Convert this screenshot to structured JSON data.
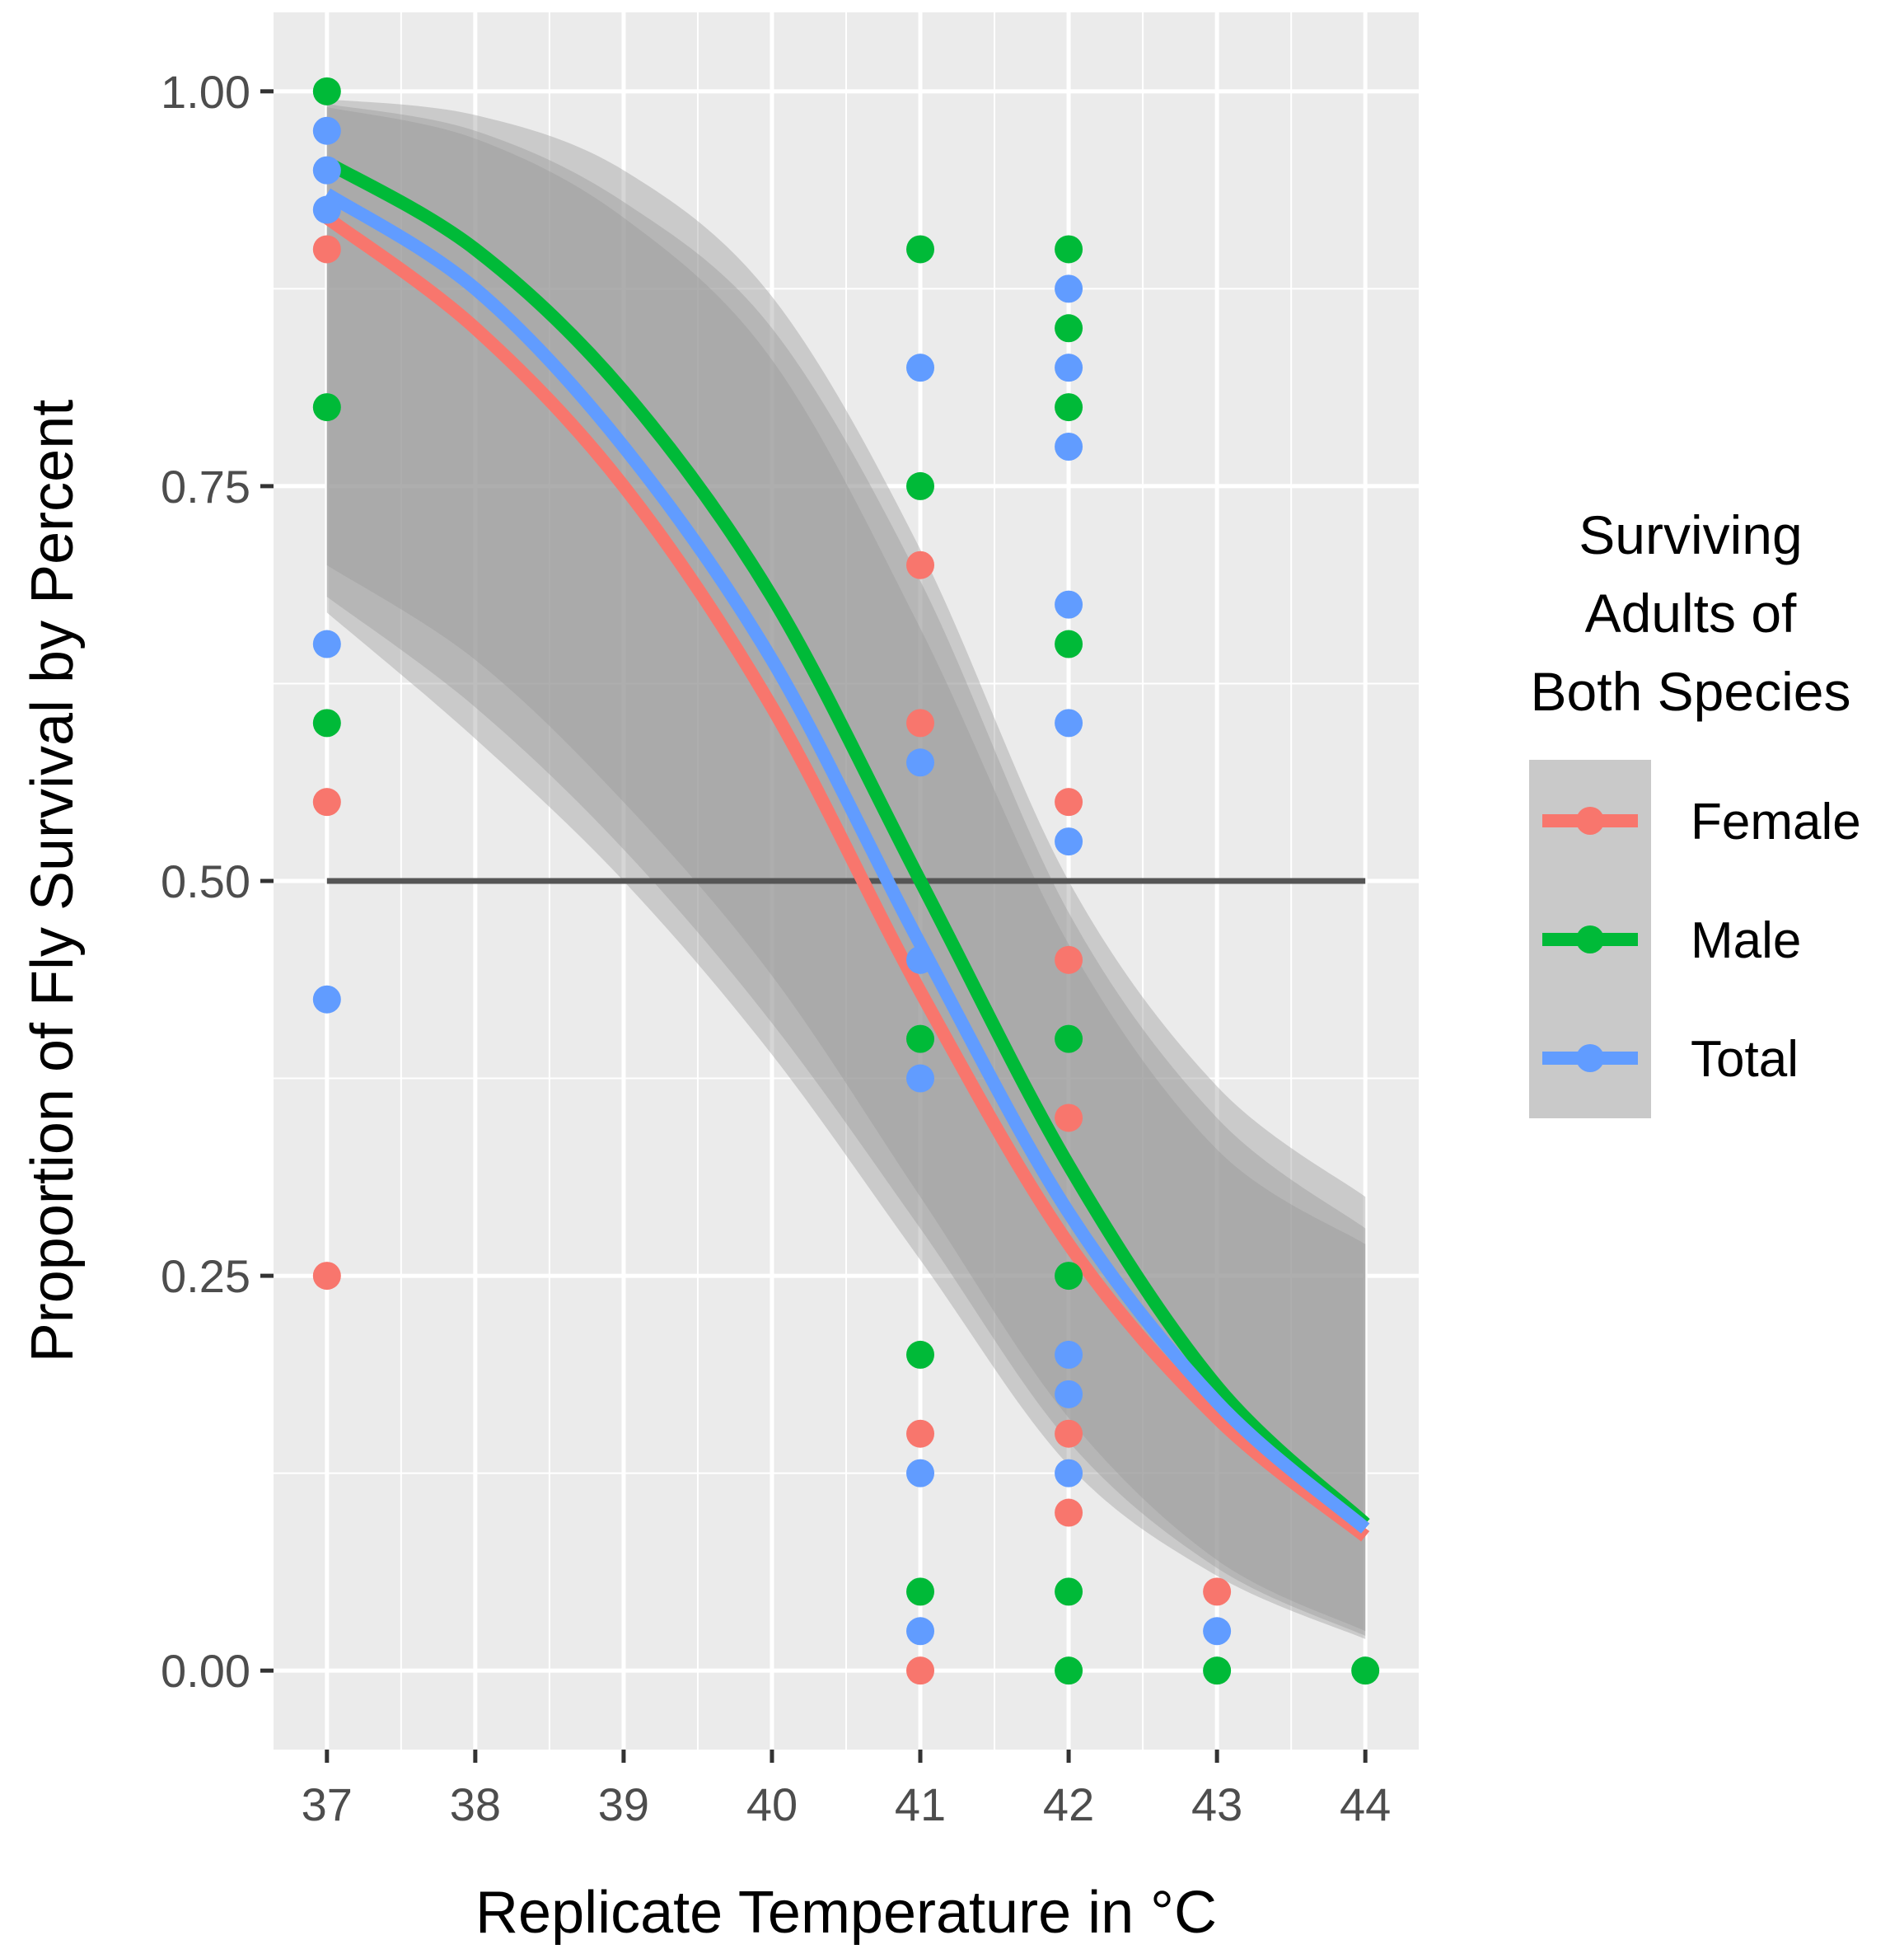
{
  "chart_data": {
    "type": "scatter",
    "title": "",
    "xlabel": "Replicate Temperature in °C",
    "ylabel": "Proportion of Fly Survival by Percent",
    "xlim": [
      36.64,
      44.36
    ],
    "ylim": [
      -0.05,
      1.05
    ],
    "x_ticks": [
      37,
      38,
      39,
      40,
      41,
      42,
      43,
      44
    ],
    "y_ticks": [
      0.0,
      0.25,
      0.5,
      0.75,
      1.0
    ],
    "y_tick_labels": [
      "0.00",
      "0.25",
      "0.50",
      "0.75",
      "1.00"
    ],
    "reference_line": {
      "y": 0.5,
      "color": "#555555"
    },
    "legend": {
      "title_lines": [
        "Surviving",
        "Adults of",
        "Both Species"
      ],
      "position": "right"
    },
    "series": [
      {
        "name": "Female",
        "color": "#F8766D",
        "points": [
          [
            37,
            0.9
          ],
          [
            37,
            0.55
          ],
          [
            37,
            0.25
          ],
          [
            41,
            0.7
          ],
          [
            41,
            0.6
          ],
          [
            41,
            0.15
          ],
          [
            41,
            0.0
          ],
          [
            42,
            0.55
          ],
          [
            42,
            0.45
          ],
          [
            42,
            0.35
          ],
          [
            42,
            0.15
          ],
          [
            42,
            0.1
          ],
          [
            43,
            0.05
          ]
        ],
        "fit": [
          [
            37,
            0.92
          ],
          [
            38,
            0.85
          ],
          [
            39,
            0.75
          ],
          [
            40,
            0.61
          ],
          [
            41,
            0.43
          ],
          [
            42,
            0.27
          ],
          [
            43,
            0.16
          ],
          [
            44,
            0.085
          ]
        ],
        "ci_lower": [
          [
            37,
            0.67
          ],
          [
            38,
            0.59
          ],
          [
            39,
            0.5
          ],
          [
            40,
            0.39
          ],
          [
            41,
            0.26
          ],
          [
            42,
            0.13
          ],
          [
            43,
            0.06
          ],
          [
            44,
            0.02
          ]
        ],
        "ci_upper": [
          [
            37,
            0.99
          ],
          [
            38,
            0.97
          ],
          [
            39,
            0.92
          ],
          [
            40,
            0.83
          ],
          [
            41,
            0.66
          ],
          [
            42,
            0.46
          ],
          [
            43,
            0.33
          ],
          [
            44,
            0.27
          ]
        ]
      },
      {
        "name": "Male",
        "color": "#00BA38",
        "points": [
          [
            37,
            1.0
          ],
          [
            37,
            0.8
          ],
          [
            37,
            0.6
          ],
          [
            41,
            0.9
          ],
          [
            41,
            0.75
          ],
          [
            41,
            0.4
          ],
          [
            41,
            0.2
          ],
          [
            41,
            0.05
          ],
          [
            42,
            0.9
          ],
          [
            42,
            0.85
          ],
          [
            42,
            0.8
          ],
          [
            42,
            0.65
          ],
          [
            42,
            0.4
          ],
          [
            42,
            0.25
          ],
          [
            42,
            0.05
          ],
          [
            42,
            0.0
          ],
          [
            43,
            0.0
          ],
          [
            44,
            0.0
          ]
        ],
        "fit": [
          [
            37,
            0.955
          ],
          [
            38,
            0.9
          ],
          [
            39,
            0.81
          ],
          [
            40,
            0.68
          ],
          [
            41,
            0.5
          ],
          [
            42,
            0.32
          ],
          [
            43,
            0.18
          ],
          [
            44,
            0.093
          ]
        ],
        "ci_lower": [
          [
            37,
            0.7
          ],
          [
            38,
            0.64
          ],
          [
            39,
            0.55
          ],
          [
            40,
            0.44
          ],
          [
            41,
            0.3
          ],
          [
            42,
            0.16
          ],
          [
            43,
            0.07
          ],
          [
            44,
            0.025
          ]
        ],
        "ci_upper": [
          [
            37,
            0.995
          ],
          [
            38,
            0.985
          ],
          [
            39,
            0.95
          ],
          [
            40,
            0.87
          ],
          [
            41,
            0.71
          ],
          [
            42,
            0.5
          ],
          [
            43,
            0.37
          ],
          [
            44,
            0.3
          ]
        ]
      },
      {
        "name": "Total",
        "color": "#619CFF",
        "points": [
          [
            37,
            0.975
          ],
          [
            37,
            0.95
          ],
          [
            37,
            0.925
          ],
          [
            37,
            0.65
          ],
          [
            37,
            0.425
          ],
          [
            41,
            0.825
          ],
          [
            41,
            0.575
          ],
          [
            41,
            0.45
          ],
          [
            41,
            0.375
          ],
          [
            41,
            0.125
          ],
          [
            41,
            0.025
          ],
          [
            42,
            0.875
          ],
          [
            42,
            0.825
          ],
          [
            42,
            0.775
          ],
          [
            42,
            0.675
          ],
          [
            42,
            0.6
          ],
          [
            42,
            0.525
          ],
          [
            42,
            0.2
          ],
          [
            42,
            0.175
          ],
          [
            42,
            0.125
          ],
          [
            43,
            0.025
          ]
        ],
        "fit": [
          [
            37,
            0.935
          ],
          [
            38,
            0.875
          ],
          [
            39,
            0.775
          ],
          [
            40,
            0.64
          ],
          [
            41,
            0.46
          ],
          [
            42,
            0.29
          ],
          [
            43,
            0.17
          ],
          [
            44,
            0.09
          ]
        ],
        "ci_lower": [
          [
            37,
            0.68
          ],
          [
            38,
            0.61
          ],
          [
            39,
            0.52
          ],
          [
            40,
            0.41
          ],
          [
            41,
            0.28
          ],
          [
            42,
            0.145
          ],
          [
            43,
            0.065
          ],
          [
            44,
            0.022
          ]
        ],
        "ci_upper": [
          [
            37,
            0.992
          ],
          [
            38,
            0.975
          ],
          [
            39,
            0.93
          ],
          [
            40,
            0.85
          ],
          [
            41,
            0.69
          ],
          [
            42,
            0.48
          ],
          [
            43,
            0.35
          ],
          [
            44,
            0.28
          ]
        ]
      }
    ]
  }
}
